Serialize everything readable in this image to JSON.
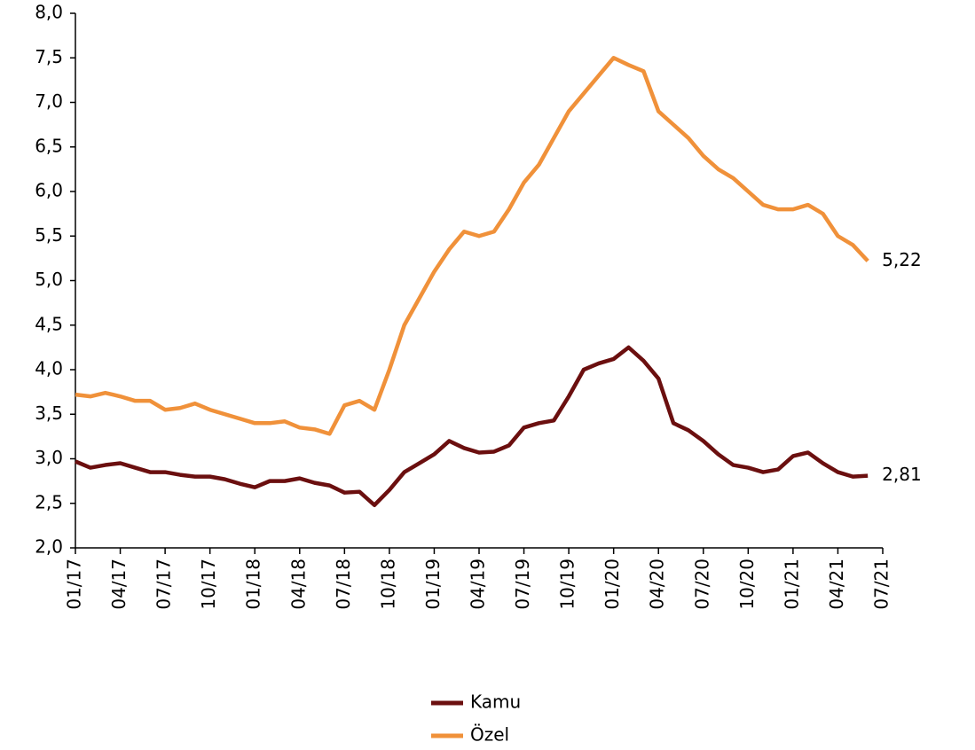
{
  "chart_data": {
    "type": "line",
    "categories": [
      "01/17",
      null,
      null,
      "04/17",
      null,
      null,
      "07/17",
      null,
      null,
      "10/17",
      null,
      null,
      "01/18",
      null,
      null,
      "04/18",
      null,
      null,
      "07/18",
      null,
      null,
      "10/18",
      null,
      null,
      "01/19",
      null,
      null,
      "04/19",
      null,
      null,
      "07/19",
      null,
      null,
      "10/19",
      null,
      null,
      "01/20",
      null,
      null,
      "04/20",
      null,
      null,
      "07/20",
      null,
      null,
      "10/20",
      null,
      null,
      "01/21",
      null,
      null,
      "04/21",
      null,
      null,
      "07/21"
    ],
    "series": [
      {
        "name": "Kamu",
        "color": "#6b0f0f",
        "end_label": "2,81",
        "values": [
          2.97,
          2.9,
          2.93,
          2.95,
          2.9,
          2.85,
          2.85,
          2.82,
          2.8,
          2.8,
          2.77,
          2.72,
          2.68,
          2.75,
          2.75,
          2.78,
          2.73,
          2.7,
          2.62,
          2.63,
          2.48,
          2.65,
          2.85,
          2.95,
          3.05,
          3.2,
          3.12,
          3.07,
          3.08,
          3.15,
          3.35,
          3.4,
          3.43,
          3.7,
          4.0,
          4.07,
          4.12,
          4.25,
          4.1,
          3.9,
          3.4,
          3.32,
          3.2,
          3.05,
          2.93,
          2.9,
          2.85,
          2.88,
          3.03,
          3.07,
          2.95,
          2.85,
          2.8,
          2.81,
          null
        ]
      },
      {
        "name": "Özel",
        "color": "#f0913a",
        "end_label": "5,22",
        "values": [
          3.72,
          3.7,
          3.74,
          3.7,
          3.65,
          3.65,
          3.55,
          3.57,
          3.62,
          3.55,
          3.5,
          3.45,
          3.4,
          3.4,
          3.42,
          3.35,
          3.33,
          3.28,
          3.6,
          3.65,
          3.55,
          4.0,
          4.5,
          4.8,
          5.1,
          5.35,
          5.55,
          5.5,
          5.55,
          5.8,
          6.1,
          6.3,
          6.6,
          6.9,
          7.1,
          7.3,
          7.5,
          7.42,
          7.35,
          6.9,
          6.75,
          6.6,
          6.4,
          6.25,
          6.15,
          6.0,
          5.85,
          5.8,
          5.8,
          5.85,
          5.75,
          5.5,
          5.4,
          5.22,
          null
        ]
      }
    ],
    "ylim": [
      2,
      8
    ],
    "yticks": [
      {
        "value": 2,
        "label": "2,0"
      },
      {
        "value": 2.5,
        "label": "2,5"
      },
      {
        "value": 3,
        "label": "3,0"
      },
      {
        "value": 3.5,
        "label": "3,5"
      },
      {
        "value": 4,
        "label": "4,0"
      },
      {
        "value": 4.5,
        "label": "4,5"
      },
      {
        "value": 5,
        "label": "5,0"
      },
      {
        "value": 5.5,
        "label": "5,5"
      },
      {
        "value": 6,
        "label": "6,0"
      },
      {
        "value": 6.5,
        "label": "6,5"
      },
      {
        "value": 7,
        "label": "7,0"
      },
      {
        "value": 7.5,
        "label": "7,5"
      },
      {
        "value": 8,
        "label": "8,0"
      }
    ],
    "grid": false,
    "legend": "bottom"
  }
}
